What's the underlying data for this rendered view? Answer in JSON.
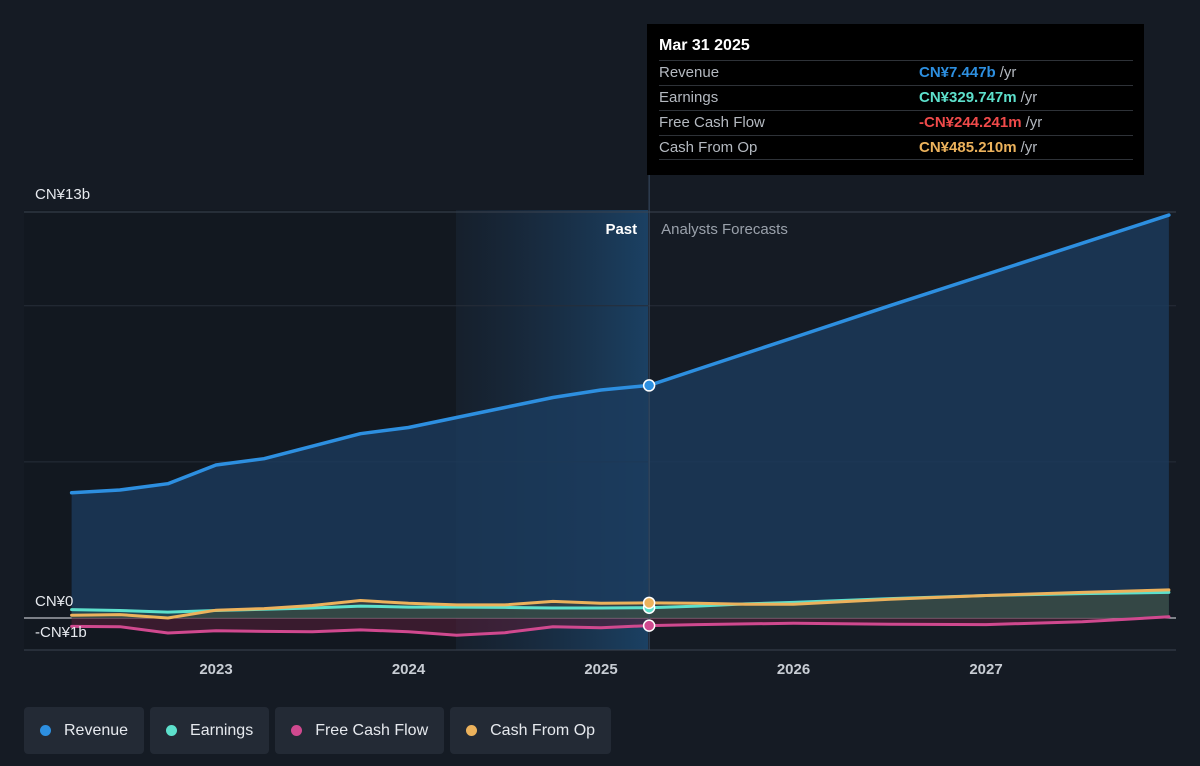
{
  "chart_data": {
    "type": "line",
    "x_axis": {
      "ticks": [
        "2023",
        "2024",
        "2025",
        "2026",
        "2027"
      ]
    },
    "y_axis": {
      "ticks": [
        "CN¥13b",
        "CN¥0",
        "-CN¥1b"
      ],
      "min": -1,
      "max": 13,
      "unit": "CN¥b"
    },
    "divider": {
      "x": 2025.25,
      "past_label": "Past",
      "forecast_label": "Analysts Forecasts"
    },
    "series": [
      {
        "name": "Revenue",
        "color": "#2d8fe0",
        "points": [
          [
            2022.25,
            4.01
          ],
          [
            2022.5,
            4.1
          ],
          [
            2022.75,
            4.3
          ],
          [
            2023,
            4.9
          ],
          [
            2023.25,
            5.1
          ],
          [
            2023.5,
            5.5
          ],
          [
            2023.75,
            5.9
          ],
          [
            2024,
            6.1
          ],
          [
            2024.25,
            6.42
          ],
          [
            2024.5,
            6.74
          ],
          [
            2024.75,
            7.06
          ],
          [
            2025,
            7.3
          ],
          [
            2025.25,
            7.447
          ],
          [
            2025.5,
            7.96
          ],
          [
            2025.75,
            8.47
          ],
          [
            2026,
            8.98
          ],
          [
            2026.5,
            10.0
          ],
          [
            2027,
            11.0
          ],
          [
            2027.5,
            12.0
          ],
          [
            2027.95,
            12.9
          ]
        ]
      },
      {
        "name": "Earnings",
        "color": "#5de0cc",
        "points": [
          [
            2022.25,
            0.27
          ],
          [
            2022.5,
            0.24
          ],
          [
            2022.75,
            0.19
          ],
          [
            2023,
            0.24
          ],
          [
            2023.25,
            0.28
          ],
          [
            2023.5,
            0.32
          ],
          [
            2023.75,
            0.38
          ],
          [
            2024,
            0.35
          ],
          [
            2024.25,
            0.35
          ],
          [
            2024.5,
            0.34
          ],
          [
            2024.75,
            0.32
          ],
          [
            2025,
            0.32
          ],
          [
            2025.25,
            0.33
          ],
          [
            2025.5,
            0.38
          ],
          [
            2025.75,
            0.45
          ],
          [
            2026,
            0.5
          ],
          [
            2026.5,
            0.62
          ],
          [
            2027,
            0.72
          ],
          [
            2027.5,
            0.78
          ],
          [
            2027.95,
            0.82
          ]
        ]
      },
      {
        "name": "Free Cash Flow",
        "color": "#d0498f",
        "points": [
          [
            2022.25,
            -0.27
          ],
          [
            2022.5,
            -0.28
          ],
          [
            2022.75,
            -0.48
          ],
          [
            2023,
            -0.41
          ],
          [
            2023.25,
            -0.43
          ],
          [
            2023.5,
            -0.44
          ],
          [
            2023.75,
            -0.38
          ],
          [
            2024,
            -0.44
          ],
          [
            2024.25,
            -0.55
          ],
          [
            2024.5,
            -0.47
          ],
          [
            2024.75,
            -0.28
          ],
          [
            2025,
            -0.31
          ],
          [
            2025.25,
            -0.244
          ],
          [
            2025.5,
            -0.21
          ],
          [
            2025.75,
            -0.19
          ],
          [
            2026,
            -0.17
          ],
          [
            2026.5,
            -0.2
          ],
          [
            2027,
            -0.21
          ],
          [
            2027.5,
            -0.12
          ],
          [
            2027.95,
            0.04
          ]
        ]
      },
      {
        "name": "Cash From Op",
        "color": "#ecb25c",
        "points": [
          [
            2022.25,
            0.09
          ],
          [
            2022.5,
            0.11
          ],
          [
            2022.75,
            0.0
          ],
          [
            2023,
            0.25
          ],
          [
            2023.25,
            0.3
          ],
          [
            2023.5,
            0.4
          ],
          [
            2023.75,
            0.56
          ],
          [
            2024,
            0.47
          ],
          [
            2024.25,
            0.42
          ],
          [
            2024.5,
            0.42
          ],
          [
            2024.75,
            0.53
          ],
          [
            2025,
            0.47
          ],
          [
            2025.25,
            0.485
          ],
          [
            2025.5,
            0.47
          ],
          [
            2025.75,
            0.44
          ],
          [
            2026,
            0.44
          ],
          [
            2026.5,
            0.6
          ],
          [
            2027,
            0.72
          ],
          [
            2027.5,
            0.82
          ],
          [
            2027.95,
            0.9
          ]
        ]
      }
    ]
  },
  "tooltip": {
    "date": "Mar 31 2025",
    "unit": "/yr",
    "rows": [
      {
        "label": "Revenue",
        "value": "CN¥7.447b",
        "color": "#2d8fe0"
      },
      {
        "label": "Earnings",
        "value": "CN¥329.747m",
        "color": "#5de0cc"
      },
      {
        "label": "Free Cash Flow",
        "value": "-CN¥244.241m",
        "color": "#f04a4a"
      },
      {
        "label": "Cash From Op",
        "value": "CN¥485.210m",
        "color": "#ecb25c"
      }
    ]
  },
  "legend": [
    {
      "label": "Revenue",
      "color": "#2d8fe0"
    },
    {
      "label": "Earnings",
      "color": "#5de0cc"
    },
    {
      "label": "Free Cash Flow",
      "color": "#d0498f"
    },
    {
      "label": "Cash From Op",
      "color": "#ecb25c"
    }
  ]
}
